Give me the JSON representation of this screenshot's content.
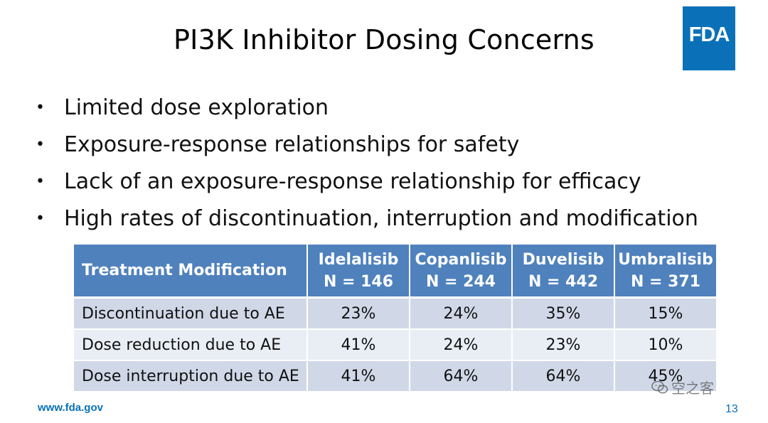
{
  "slide": {
    "title": "PI3K Inhibitor Dosing Concerns",
    "logo_text": "FDA",
    "bullets": [
      "Limited dose exploration",
      "Exposure-response relationships for safety",
      "Lack of an exposure-response relationship for efficacy",
      "High rates of discontinuation, interruption and modification"
    ],
    "bullet_symbol": "•",
    "footer_url": "www.fda.gov",
    "page_number": "13",
    "watermark": "空之客"
  },
  "table": {
    "header": {
      "first": "Treatment Modification",
      "columns": [
        {
          "name": "Idelalisib",
          "n": "N = 146"
        },
        {
          "name": "Copanlisib",
          "n": "N = 244"
        },
        {
          "name": "Duvelisib",
          "n": "N = 442"
        },
        {
          "name": "Umbralisib",
          "n": "N = 371"
        }
      ]
    },
    "rows": [
      {
        "label": "Discontinuation due to AE",
        "values": [
          "23%",
          "24%",
          "35%",
          "15%"
        ]
      },
      {
        "label": "Dose reduction due to AE",
        "values": [
          "41%",
          "24%",
          "23%",
          "10%"
        ]
      },
      {
        "label": "Dose interruption due to AE",
        "values": [
          "41%",
          "64%",
          "64%",
          "45%"
        ]
      }
    ]
  },
  "colors": {
    "fda_blue": "#0a71b9",
    "header_fill": "#4f81bd",
    "row_dark": "#d0d8e8",
    "row_light": "#e9edf4"
  }
}
